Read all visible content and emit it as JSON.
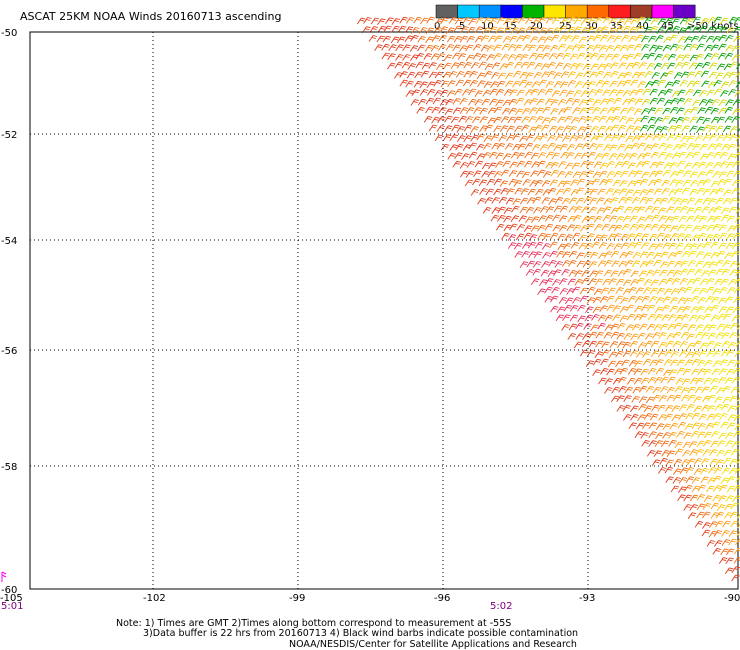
{
  "title": "ASCAT 25KM NOAA Winds 20160713 ascending",
  "legend": {
    "labels": [
      "0",
      "5",
      "10",
      "15",
      "20",
      "25",
      "30",
      "35",
      "40",
      "45",
      ">50 knots"
    ],
    "colors": [
      "#606060",
      "#00c8ff",
      "#0090ff",
      "#0000ff",
      "#00b400",
      "#ffe600",
      "#ffa800",
      "#ff6a00",
      "#ff1e1e",
      "#a03c28",
      "#ff00ff",
      "#6a00c8"
    ]
  },
  "axes": {
    "lat_labels": [
      "-50",
      "-52",
      "-54",
      "-56",
      "-58",
      "-60"
    ],
    "lon_labels": [
      "-105",
      "-102",
      "-99",
      "-96",
      "-93",
      "-90"
    ]
  },
  "times": {
    "left": "5:01",
    "middle": "5:02"
  },
  "notes": {
    "line1": "Note: 1) Times are GMT 2)Times along bottom correspond to measurement at -55S",
    "line2": "3)Data buffer is 22 hrs from 20160713 4) Black wind barbs indicate possible contamination",
    "line3": "NOAA/NESDIS/Center for Satellite Applications and Research"
  },
  "colors": {
    "background": "#ffffff",
    "grid": "#000000",
    "time_text": "#800080"
  }
}
